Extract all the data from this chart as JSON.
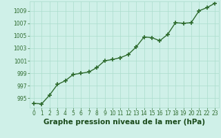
{
  "x": [
    0,
    1,
    2,
    3,
    4,
    5,
    6,
    7,
    8,
    9,
    10,
    11,
    12,
    13,
    14,
    15,
    16,
    17,
    18,
    19,
    20,
    21,
    22,
    23
  ],
  "y": [
    994.2,
    994.1,
    995.5,
    997.2,
    997.8,
    998.8,
    999.0,
    999.2,
    999.9,
    1001.0,
    1001.2,
    1001.5,
    1002.0,
    1003.2,
    1004.8,
    1004.7,
    1004.2,
    1005.2,
    1007.1,
    1007.0,
    1007.1,
    1009.0,
    1009.5,
    1010.2
  ],
  "line_color": "#2d6a2d",
  "marker_color": "#2d6a2d",
  "bg_color": "#cff0e8",
  "grid_color": "#aaddcc",
  "xlabel": "Graphe pression niveau de la mer (hPa)",
  "xlabel_color": "#1a4a1a",
  "ylim": [
    993.5,
    1010.5
  ],
  "xlim": [
    -0.5,
    23.5
  ],
  "yticks": [
    995,
    997,
    999,
    1001,
    1003,
    1005,
    1007,
    1009
  ],
  "xticks": [
    0,
    1,
    2,
    3,
    4,
    5,
    6,
    7,
    8,
    9,
    10,
    11,
    12,
    13,
    14,
    15,
    16,
    17,
    18,
    19,
    20,
    21,
    22,
    23
  ],
  "tick_fontsize": 5.5,
  "xlabel_fontsize": 7.5,
  "line_width": 1.0,
  "marker_size": 4
}
